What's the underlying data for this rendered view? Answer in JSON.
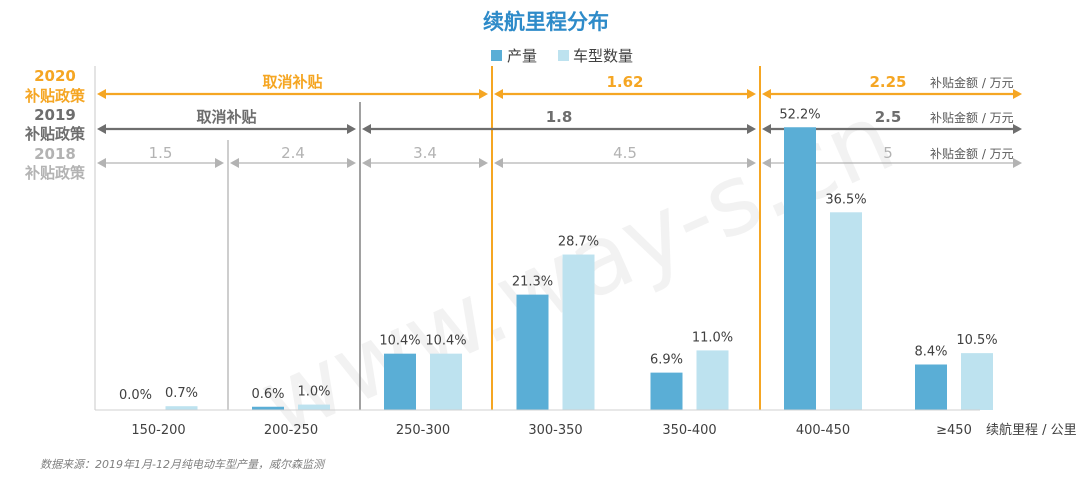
{
  "chart_data": {
    "type": "bar",
    "title": "续航里程分布",
    "categories": [
      "150-200",
      "200-250",
      "250-300",
      "300-350",
      "350-400",
      "400-450",
      "≥450"
    ],
    "series": [
      {
        "name": "产量",
        "values": [
          0.0,
          0.6,
          10.4,
          21.3,
          6.9,
          52.2,
          8.4
        ],
        "labels": [
          "0.0%",
          "0.6%",
          "10.4%",
          "21.3%",
          "6.9%",
          "52.2%",
          "8.4%"
        ],
        "color": "#5aaed6"
      },
      {
        "name": "车型数量",
        "values": [
          0.7,
          1.0,
          10.4,
          28.7,
          11.0,
          36.5,
          10.5
        ],
        "labels": [
          "0.7%",
          "1.0%",
          "10.4%",
          "28.7%",
          "11.0%",
          "36.5%",
          "10.5%"
        ],
        "color": "#bde2ef"
      }
    ],
    "xlabel": "续航里程 / 公里",
    "ylim": [
      0,
      60
    ]
  },
  "policies": [
    {
      "year": "2020",
      "name": "补贴政策",
      "color": "#f5a623",
      "segments": [
        {
          "label": "取消补贴",
          "from": 0,
          "to": 3
        },
        {
          "label": "1.62",
          "from": 3,
          "to": 5
        },
        {
          "label": "2.25",
          "from": 5,
          "to": 7
        }
      ],
      "unit": "补贴金额 / 万元"
    },
    {
      "year": "2019",
      "name": "补贴政策",
      "color": "#6e6e6e",
      "segments": [
        {
          "label": "取消补贴",
          "from": 0,
          "to": 2
        },
        {
          "label": "1.8",
          "from": 2,
          "to": 5
        },
        {
          "label": "2.5",
          "from": 5,
          "to": 7
        }
      ],
      "unit": "补贴金额 / 万元"
    },
    {
      "year": "2018",
      "name": "补贴政策",
      "color": "#b3b3b3",
      "segments": [
        {
          "label": "1.5",
          "from": 0,
          "to": 1
        },
        {
          "label": "2.4",
          "from": 1,
          "to": 2
        },
        {
          "label": "3.4",
          "from": 2,
          "to": 3
        },
        {
          "label": "4.5",
          "from": 3,
          "to": 5
        },
        {
          "label": "5",
          "from": 5,
          "to": 7
        }
      ],
      "unit": "补贴金额 / 万元"
    }
  ],
  "source": "数据来源：2019年1月-12月纯电动车型产量，威尔森监测",
  "watermark": "www.way-s.cn"
}
